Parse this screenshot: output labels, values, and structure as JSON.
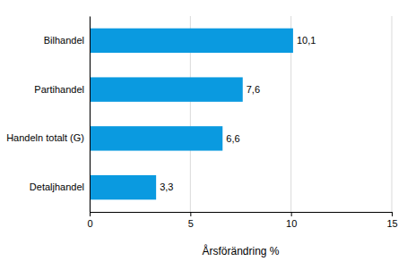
{
  "chart_data": {
    "type": "bar",
    "orientation": "horizontal",
    "categories": [
      "Bilhandel",
      "Partihandel",
      "Handeln totalt (G)",
      "Detaljhandel"
    ],
    "values": [
      10.1,
      7.6,
      6.6,
      3.3
    ],
    "value_labels": [
      "10,1",
      "7,6",
      "6,6",
      "3,3"
    ],
    "data_labels": true,
    "color": "#0a9ae0",
    "x_label": "Årsförändring %",
    "xlim": [
      0,
      15
    ],
    "xticks": [
      0,
      5,
      10,
      15
    ],
    "grid": true
  }
}
